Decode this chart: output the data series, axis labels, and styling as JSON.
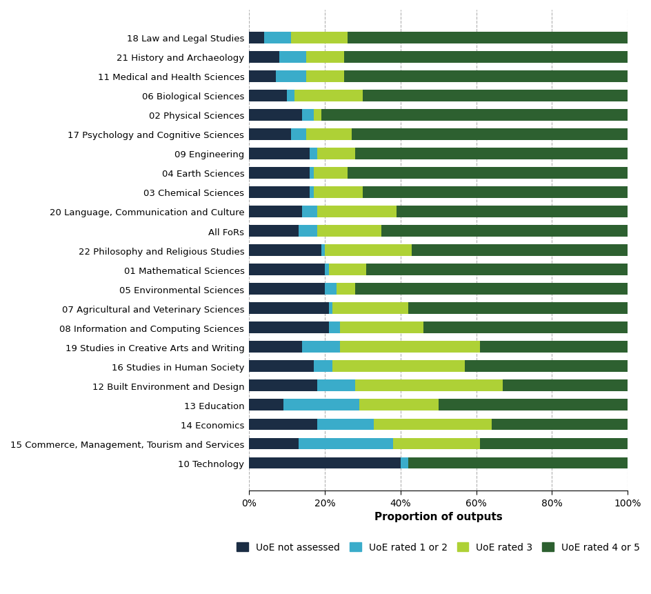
{
  "categories": [
    "18 Law and Legal Studies",
    "21 History and Archaeology",
    "11 Medical and Health Sciences",
    "06 Biological Sciences",
    "02 Physical Sciences",
    "17 Psychology and Cognitive Sciences",
    "09 Engineering",
    "04 Earth Sciences",
    "03 Chemical Sciences",
    "20 Language, Communication and Culture",
    "All FoRs",
    "22 Philosophy and Religious Studies",
    "01 Mathematical Sciences",
    "05 Environmental Sciences",
    "07 Agricultural and Veterinary Sciences",
    "08 Information and Computing Sciences",
    "19 Studies in Creative Arts and Writing",
    "16 Studies in Human Society",
    "12 Built Environment and Design",
    "13 Education",
    "14 Economics",
    "15 Commerce, Management, Tourism and Services",
    "10 Technology"
  ],
  "not_assessed": [
    4,
    8,
    7,
    10,
    14,
    11,
    16,
    16,
    16,
    14,
    13,
    19,
    20,
    20,
    21,
    21,
    14,
    17,
    18,
    9,
    18,
    13,
    40
  ],
  "rated_1or2": [
    7,
    7,
    8,
    2,
    3,
    4,
    2,
    1,
    1,
    4,
    5,
    1,
    1,
    3,
    1,
    3,
    10,
    5,
    10,
    20,
    15,
    25,
    2
  ],
  "rated_3": [
    15,
    10,
    10,
    18,
    2,
    12,
    10,
    9,
    13,
    21,
    17,
    23,
    10,
    5,
    20,
    22,
    37,
    35,
    39,
    21,
    31,
    23,
    0
  ],
  "rated_4or5": [
    74,
    75,
    75,
    70,
    81,
    73,
    72,
    74,
    70,
    61,
    65,
    57,
    69,
    72,
    58,
    54,
    39,
    43,
    33,
    50,
    36,
    39,
    58
  ],
  "colors": {
    "not_assessed": "#1b2d44",
    "rated_1or2": "#3aacca",
    "rated_3": "#aed136",
    "rated_4or5": "#2d6030"
  },
  "legend_labels": [
    "UoE not assessed",
    "UoE rated 1 or 2",
    "UoE rated 3",
    "UoE rated 4 or 5"
  ],
  "xlabel": "Proportion of outputs",
  "xtick_labels": [
    "0%",
    "20%",
    "40%",
    "60%",
    "80%",
    "100%"
  ],
  "xtick_values": [
    0,
    20,
    40,
    60,
    80,
    100
  ],
  "background_color": "#ffffff",
  "bar_height": 0.6,
  "axis_fontsize": 11,
  "legend_fontsize": 10,
  "ytick_fontsize": 9.5,
  "xtick_fontsize": 10
}
